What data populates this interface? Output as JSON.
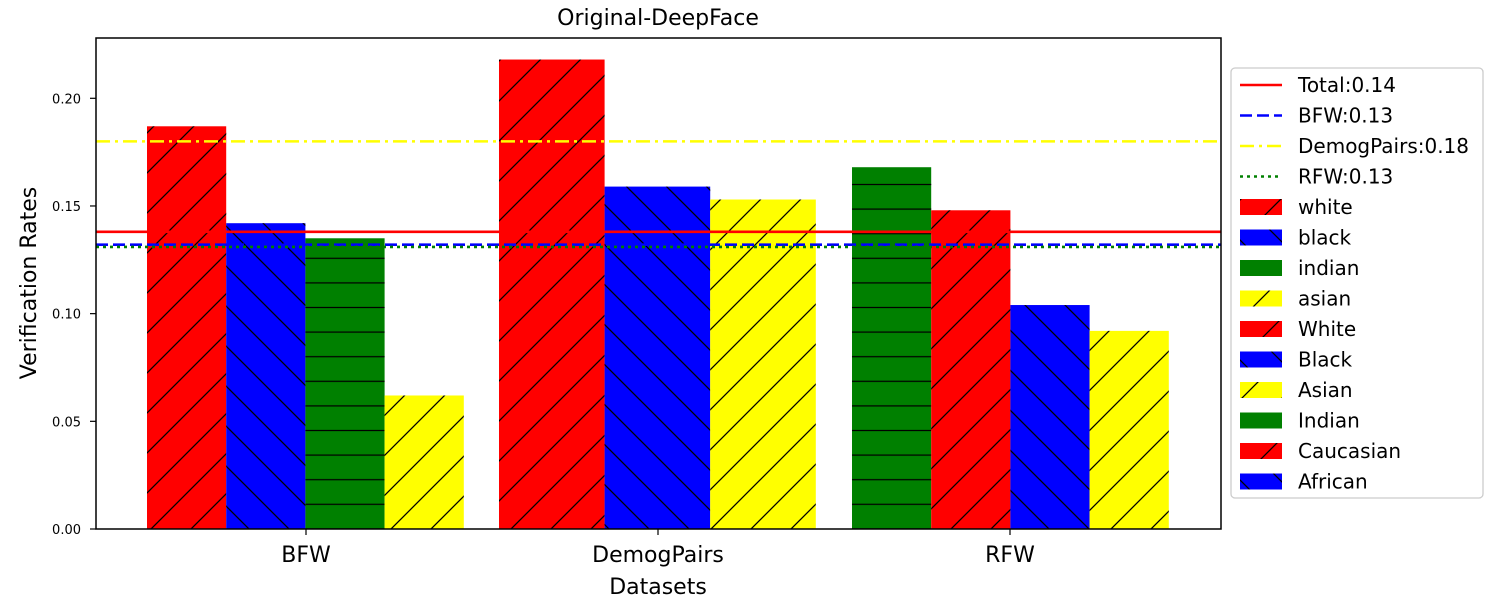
{
  "chart_data": {
    "type": "bar",
    "title": "Original-DeepFace",
    "xlabel": "Datasets",
    "ylabel": "Verification Rates",
    "ylim": [
      0,
      0.228
    ],
    "yticks": [
      "0.00",
      "0.05",
      "0.10",
      "0.15",
      "0.20"
    ],
    "ytick_values": [
      0,
      0.05,
      0.1,
      0.15,
      0.2
    ],
    "categories": [
      "BFW",
      "DemogPairs",
      "RFW"
    ],
    "grid": false,
    "legend_position": "right",
    "groups": [
      {
        "dataset": "BFW",
        "bars": [
          {
            "label": "white",
            "value": 0.187,
            "color": "#ff0000",
            "hatch": "forward"
          },
          {
            "label": "black",
            "value": 0.142,
            "color": "#0000ff",
            "hatch": "back"
          },
          {
            "label": "indian",
            "value": 0.135,
            "color": "#008000",
            "hatch": "horizontal"
          },
          {
            "label": "asian",
            "value": 0.062,
            "color": "#ffff00",
            "hatch": "forward"
          }
        ]
      },
      {
        "dataset": "DemogPairs",
        "bars": [
          {
            "label": "White",
            "value": 0.218,
            "color": "#ff0000",
            "hatch": "forward"
          },
          {
            "label": "Black",
            "value": 0.159,
            "color": "#0000ff",
            "hatch": "back"
          },
          {
            "label": "Asian",
            "value": 0.153,
            "color": "#ffff00",
            "hatch": "forward"
          }
        ]
      },
      {
        "dataset": "RFW",
        "bars": [
          {
            "label": "Indian",
            "value": 0.168,
            "color": "#008000",
            "hatch": "horizontal"
          },
          {
            "label": "Caucasian",
            "value": 0.148,
            "color": "#ff0000",
            "hatch": "forward"
          },
          {
            "label": "African",
            "value": 0.104,
            "color": "#0000ff",
            "hatch": "back"
          },
          {
            "label": "Asian",
            "value": 0.092,
            "color": "#ffff00",
            "hatch": "forward"
          }
        ]
      }
    ],
    "reference_lines": [
      {
        "label": "Total:0.14",
        "value": 0.138,
        "color": "#ff0000",
        "style": "solid"
      },
      {
        "label": "BFW:0.13",
        "value": 0.132,
        "color": "#0000ff",
        "style": "dashed"
      },
      {
        "label": "DemogPairs:0.18",
        "value": 0.18,
        "color": "#ffff00",
        "style": "dashdot"
      },
      {
        "label": "RFW:0.13",
        "value": 0.131,
        "color": "#008000",
        "style": "dotted"
      }
    ],
    "legend": [
      {
        "label": "Total:0.14",
        "kind": "line",
        "color": "#ff0000",
        "style": "solid"
      },
      {
        "label": "BFW:0.13",
        "kind": "line",
        "color": "#0000ff",
        "style": "dashed"
      },
      {
        "label": "DemogPairs:0.18",
        "kind": "line",
        "color": "#ffff00",
        "style": "dashdot"
      },
      {
        "label": "RFW:0.13",
        "kind": "line",
        "color": "#008000",
        "style": "dotted"
      },
      {
        "label": "white",
        "kind": "patch",
        "color": "#ff0000",
        "hatch": "forward"
      },
      {
        "label": "black",
        "kind": "patch",
        "color": "#0000ff",
        "hatch": "back"
      },
      {
        "label": "indian",
        "kind": "patch",
        "color": "#008000",
        "hatch": "horizontal"
      },
      {
        "label": "asian",
        "kind": "patch",
        "color": "#ffff00",
        "hatch": "forward"
      },
      {
        "label": "White",
        "kind": "patch",
        "color": "#ff0000",
        "hatch": "forward"
      },
      {
        "label": "Black",
        "kind": "patch",
        "color": "#0000ff",
        "hatch": "back"
      },
      {
        "label": "Asian",
        "kind": "patch",
        "color": "#ffff00",
        "hatch": "forward"
      },
      {
        "label": "Indian",
        "kind": "patch",
        "color": "#008000",
        "hatch": "horizontal"
      },
      {
        "label": "Caucasian",
        "kind": "patch",
        "color": "#ff0000",
        "hatch": "forward"
      },
      {
        "label": "African",
        "kind": "patch",
        "color": "#0000ff",
        "hatch": "back"
      }
    ]
  }
}
